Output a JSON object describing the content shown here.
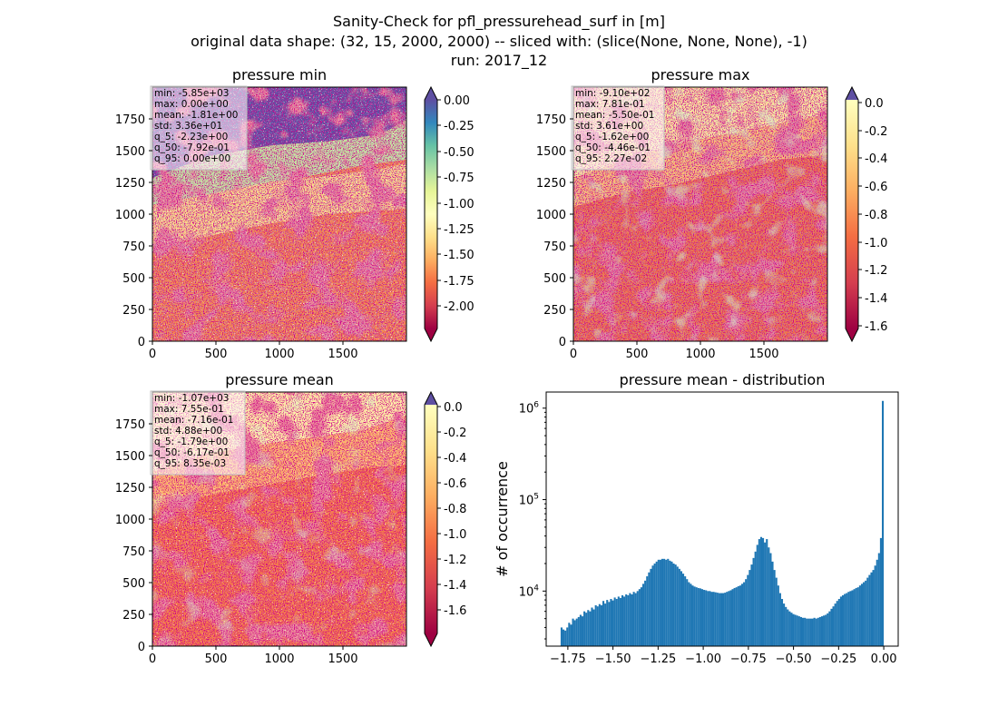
{
  "figure": {
    "title_lines": [
      "Sanity-Check for pfl_pressurehead_surf in [m]",
      "original data shape: (32, 15, 2000, 2000) -- sliced with: (slice(None, None, None), -1)",
      "run: 2017_12"
    ]
  },
  "chart_data": [
    {
      "type": "heatmap",
      "title": "pressure min",
      "colormap": "Spectral",
      "extend_min": true,
      "extend_max": true,
      "xlim": [
        0,
        2000
      ],
      "ylim": [
        0,
        2000
      ],
      "xticks": [
        "0",
        "500",
        "1000",
        "1500"
      ],
      "yticks": [
        "0",
        "250",
        "500",
        "750",
        "1000",
        "1250",
        "1500",
        "1750"
      ],
      "colorbar": {
        "range": [
          -2.23,
          0.0
        ],
        "ticks": [
          "0.00",
          "-0.25",
          "-0.50",
          "-0.75",
          "-1.00",
          "-1.25",
          "-1.50",
          "-1.75",
          "-2.00"
        ]
      },
      "stats": [
        "min: -5.85e+03",
        "max: 0.00e+00",
        "mean: -1.81e+00",
        "std: 3.36e+01",
        "q_5: -2.23e+00",
        "q_50: -7.92e-01",
        "q_95: 0.00e+00"
      ]
    },
    {
      "type": "heatmap",
      "title": "pressure max",
      "colormap": "Spectral",
      "extend_min": true,
      "extend_max": true,
      "xlim": [
        0,
        2000
      ],
      "ylim": [
        0,
        2000
      ],
      "xticks": [
        "0",
        "500",
        "1000",
        "1500"
      ],
      "yticks": [
        "0",
        "250",
        "500",
        "750",
        "1000",
        "1250",
        "1500",
        "1750"
      ],
      "colorbar": {
        "range": [
          -1.62,
          0.0227
        ],
        "ticks": [
          "0.0",
          "-0.2",
          "-0.4",
          "-0.6",
          "-0.8",
          "-1.0",
          "-1.2",
          "-1.4",
          "-1.6"
        ]
      },
      "stats": [
        "min: -9.10e+02",
        "max: 7.81e-01",
        "mean: -5.50e-01",
        "std: 3.61e+00",
        "q_5: -1.62e+00",
        "q_50: -4.46e-01",
        "q_95: 2.27e-02"
      ]
    },
    {
      "type": "heatmap",
      "title": "pressure mean",
      "colormap": "Spectral",
      "extend_min": true,
      "extend_max": true,
      "xlim": [
        0,
        2000
      ],
      "ylim": [
        0,
        2000
      ],
      "xticks": [
        "0",
        "500",
        "1000",
        "1500"
      ],
      "yticks": [
        "0",
        "250",
        "500",
        "750",
        "1000",
        "1250",
        "1500",
        "1750"
      ],
      "colorbar": {
        "range": [
          -1.79,
          0.00835
        ],
        "ticks": [
          "0.0",
          "-0.2",
          "-0.4",
          "-0.6",
          "-0.8",
          "-1.0",
          "-1.2",
          "-1.4",
          "-1.6"
        ]
      },
      "stats": [
        "min: -1.07e+03",
        "max: 7.55e-01",
        "mean: -7.16e-01",
        "std: 4.88e+00",
        "q_5: -1.79e+00",
        "q_50: -6.17e-01",
        "q_95: 8.35e-03"
      ]
    },
    {
      "type": "bar",
      "title": "pressure mean - distribution",
      "xlabel": "",
      "ylabel": "# of occurrence",
      "log_y": true,
      "xlim": [
        -1.87,
        0.08
      ],
      "ylim": [
        2500,
        1500000
      ],
      "xticks": [
        {
          "value": -1.75,
          "label": "−1.75"
        },
        {
          "value": -1.5,
          "label": "−1.50"
        },
        {
          "value": -1.25,
          "label": "−1.25"
        },
        {
          "value": -1.0,
          "label": "−1.00"
        },
        {
          "value": -0.75,
          "label": "−0.75"
        },
        {
          "value": -0.5,
          "label": "−0.50"
        },
        {
          "value": -0.25,
          "label": "−0.25"
        },
        {
          "value": 0.0,
          "label": "0.00"
        }
      ],
      "yticks": [
        {
          "value": 10000,
          "base": "10",
          "exp": "4"
        },
        {
          "value": 100000,
          "base": "10",
          "exp": "5"
        },
        {
          "value": 1000000,
          "base": "10",
          "exp": "6"
        }
      ],
      "bar_color": "#1f77b4",
      "bin_range": [
        -1.79,
        0.0
      ],
      "values": [
        4000,
        3800,
        3700,
        4000,
        4500,
        4300,
        5000,
        4800,
        5000,
        5200,
        5500,
        5300,
        6000,
        5800,
        6200,
        6000,
        6600,
        6300,
        7000,
        6800,
        7200,
        7000,
        7800,
        7300,
        8000,
        7600,
        8200,
        7900,
        8500,
        8200,
        8700,
        8400,
        9000,
        8700,
        9200,
        9000,
        9500,
        9200,
        9800,
        9500,
        10000,
        10500,
        11000,
        12000,
        13000,
        14500,
        16000,
        17500,
        19000,
        20000,
        21000,
        22000,
        22000,
        22500,
        22500,
        22000,
        22500,
        21500,
        21000,
        20000,
        19500,
        18500,
        17500,
        16500,
        15500,
        14500,
        13500,
        12500,
        12000,
        11500,
        11200,
        11000,
        10800,
        10700,
        10500,
        10300,
        10200,
        10000,
        10000,
        9800,
        9800,
        9700,
        9600,
        9500,
        9500,
        9500,
        9600,
        9800,
        10000,
        10200,
        10500,
        10800,
        11000,
        11300,
        11500,
        12000,
        12500,
        13500,
        15000,
        17000,
        19500,
        23000,
        27000,
        32000,
        37000,
        39000,
        38000,
        34000,
        37000,
        30000,
        26000,
        21000,
        17000,
        14000,
        11500,
        9500,
        8200,
        7300,
        6700,
        6300,
        6000,
        5800,
        5600,
        5500,
        5400,
        5300,
        5200,
        5100,
        5100,
        5000,
        5000,
        5000,
        5000,
        5100,
        5000,
        5100,
        5200,
        5300,
        5400,
        5500,
        5700,
        6000,
        6400,
        6800,
        7300,
        7800,
        8200,
        8700,
        9000,
        9300,
        9500,
        9800,
        10000,
        10200,
        10500,
        10800,
        11000,
        11500,
        12000,
        12500,
        13000,
        14000,
        15000,
        16000,
        17000,
        19000,
        22000,
        26000,
        38000,
        1200000
      ]
    }
  ]
}
